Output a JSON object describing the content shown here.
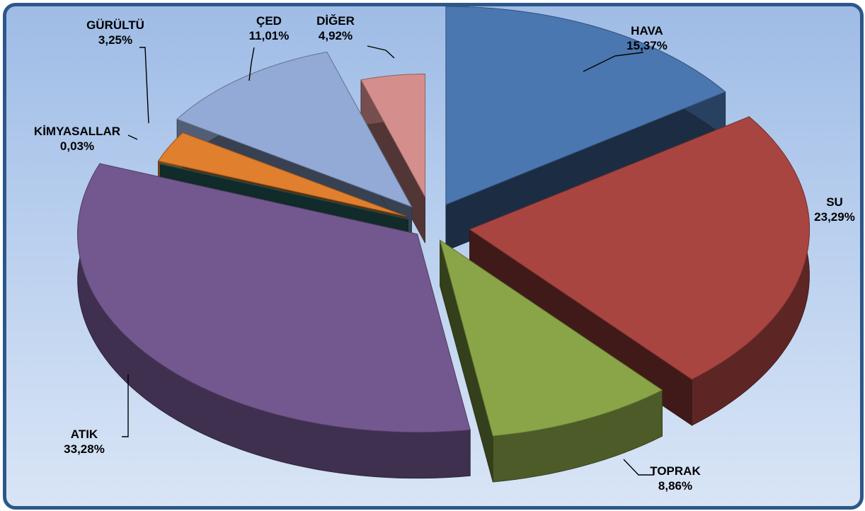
{
  "chart_data": {
    "type": "pie",
    "title": "",
    "exploded": true,
    "three_d": true,
    "slices": [
      {
        "name": "HAVA",
        "value": 15.37,
        "display": "15,37%",
        "color": "#4a77b0"
      },
      {
        "name": "SU",
        "value": 23.29,
        "display": "23,29%",
        "color": "#a94541"
      },
      {
        "name": "TOPRAK",
        "value": 8.86,
        "display": "8,86%",
        "color": "#8aa548"
      },
      {
        "name": "ATIK",
        "value": 33.28,
        "display": "33,28%",
        "color": "#73588f"
      },
      {
        "name": "KİMYASALLAR",
        "value": 0.03,
        "display": "0,03%",
        "color": "#2c6f6f"
      },
      {
        "name": "GÜRÜLTÜ",
        "value": 3.25,
        "display": "3,25%",
        "color": "#e07f2e"
      },
      {
        "name": "ÇED",
        "value": 11.01,
        "display": "11,01%",
        "color": "#93aad6"
      },
      {
        "name": "DİĞER",
        "value": 4.92,
        "display": "4,92%",
        "color": "#d48e8c"
      }
    ]
  }
}
